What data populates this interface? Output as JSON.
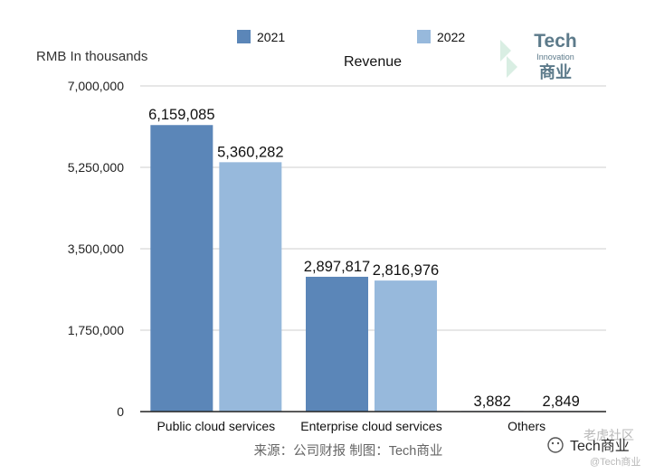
{
  "chart_data": {
    "type": "bar",
    "title": "Revenue",
    "ylabel": "RMB In thousands",
    "categories": [
      "Public cloud services",
      "Enterprise cloud services",
      "Others"
    ],
    "series": [
      {
        "name": "2021",
        "color": "#5b86b8",
        "values": [
          6159085,
          2897817,
          3882
        ]
      },
      {
        "name": "2022",
        "color": "#97b9dc",
        "values": [
          5360282,
          2816976,
          2849
        ]
      }
    ],
    "value_labels": [
      [
        "6,159,085",
        "2,897,817",
        "3,882"
      ],
      [
        "5,360,282",
        "2,816,976",
        "2,849"
      ]
    ],
    "yticks": [
      0,
      1750000,
      3500000,
      5250000,
      7000000
    ],
    "ytick_labels": [
      "0",
      "1,750,000",
      "3,500,000",
      "5,250,000",
      "7,000,000"
    ],
    "ylim": [
      0,
      7000000
    ],
    "grid": true,
    "legend_position": "top-center"
  },
  "source_note": "来源：公司财报 制图：Tech商业",
  "logo": {
    "line1": "Tech",
    "line2": "Innovation",
    "line3": "商业"
  },
  "watermark": {
    "brand": "Tech商业",
    "handle": "@Tech商业",
    "community": "老虎社区"
  },
  "colors": {
    "grid": "#cfcfcf",
    "axis": "#222222"
  }
}
